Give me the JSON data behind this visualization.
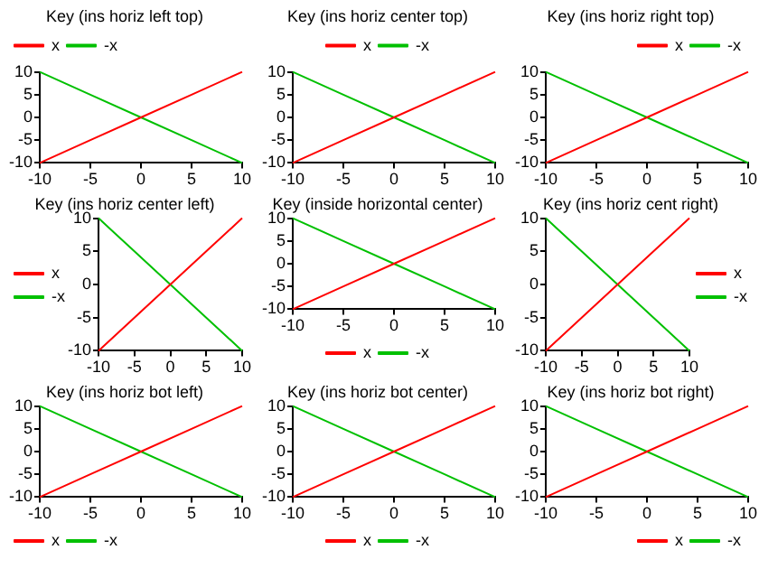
{
  "chart_data": [
    {
      "type": "line",
      "title": "Key (ins horiz left top)",
      "legend": "top left",
      "marker": "none",
      "line_style": "solid",
      "grid": false,
      "xlim": [
        -10,
        10
      ],
      "ylim": [
        -10,
        10
      ],
      "xticks": [
        -10,
        -5,
        0,
        5,
        10
      ],
      "yticks": [
        -10,
        -5,
        0,
        5,
        10
      ],
      "x": [
        -10,
        -5,
        0,
        5,
        10
      ],
      "series": [
        {
          "name": "x",
          "color": "#ff0000",
          "values": [
            -10,
            -5,
            0,
            5,
            10
          ]
        },
        {
          "name": "-x",
          "color": "#00c000",
          "values": [
            10,
            5,
            0,
            -5,
            -10
          ]
        }
      ]
    },
    {
      "type": "line",
      "title": "Key (ins horiz center top)",
      "legend": "top",
      "marker": "none",
      "line_style": "solid",
      "grid": false,
      "xlim": [
        -10,
        10
      ],
      "ylim": [
        -10,
        10
      ],
      "xticks": [
        -10,
        -5,
        0,
        5,
        10
      ],
      "yticks": [
        -10,
        -5,
        0,
        5,
        10
      ],
      "x": [
        -10,
        -5,
        0,
        5,
        10
      ],
      "series": [
        {
          "name": "x",
          "color": "#ff0000",
          "values": [
            -10,
            -5,
            0,
            5,
            10
          ]
        },
        {
          "name": "-x",
          "color": "#00c000",
          "values": [
            10,
            5,
            0,
            -5,
            -10
          ]
        }
      ]
    },
    {
      "type": "line",
      "title": "Key (ins horiz right top)",
      "legend": "top right",
      "marker": "none",
      "line_style": "solid",
      "grid": false,
      "xlim": [
        -10,
        10
      ],
      "ylim": [
        -10,
        10
      ],
      "xticks": [
        -10,
        -5,
        0,
        5,
        10
      ],
      "yticks": [
        -10,
        -5,
        0,
        5,
        10
      ],
      "x": [
        -10,
        -5,
        0,
        5,
        10
      ],
      "series": [
        {
          "name": "x",
          "color": "#ff0000",
          "values": [
            -10,
            -5,
            0,
            5,
            10
          ]
        },
        {
          "name": "-x",
          "color": "#00c000",
          "values": [
            10,
            5,
            0,
            -5,
            -10
          ]
        }
      ]
    },
    {
      "type": "line",
      "title": "Key (ins horiz center left)",
      "legend": "left",
      "marker": "none",
      "line_style": "solid",
      "grid": false,
      "xlim": [
        -10,
        10
      ],
      "ylim": [
        -10,
        10
      ],
      "xticks": [
        -10,
        -5,
        0,
        5,
        10
      ],
      "yticks": [
        -10,
        -5,
        0,
        5,
        10
      ],
      "x": [
        -10,
        -5,
        0,
        5,
        10
      ],
      "series": [
        {
          "name": "x",
          "color": "#ff0000",
          "values": [
            -10,
            -5,
            0,
            5,
            10
          ]
        },
        {
          "name": "-x",
          "color": "#00c000",
          "values": [
            10,
            5,
            0,
            -5,
            -10
          ]
        }
      ]
    },
    {
      "type": "line",
      "title": "Key (inside horizontal center)",
      "legend": "center",
      "marker": "none",
      "line_style": "solid",
      "grid": false,
      "xlim": [
        -10,
        10
      ],
      "ylim": [
        -10,
        10
      ],
      "xticks": [
        -10,
        -5,
        0,
        5,
        10
      ],
      "yticks": [
        -10,
        -5,
        0,
        5,
        10
      ],
      "x": [
        -10,
        -5,
        0,
        5,
        10
      ],
      "series": [
        {
          "name": "x",
          "color": "#ff0000",
          "values": [
            -10,
            -5,
            0,
            5,
            10
          ]
        },
        {
          "name": "-x",
          "color": "#00c000",
          "values": [
            10,
            5,
            0,
            -5,
            -10
          ]
        }
      ]
    },
    {
      "type": "line",
      "title": "Key (ins horiz cent right)",
      "legend": "right",
      "marker": "none",
      "line_style": "solid",
      "grid": false,
      "xlim": [
        -10,
        10
      ],
      "ylim": [
        -10,
        10
      ],
      "xticks": [
        -10,
        -5,
        0,
        5,
        10
      ],
      "yticks": [
        -10,
        -5,
        0,
        5,
        10
      ],
      "x": [
        -10,
        -5,
        0,
        5,
        10
      ],
      "series": [
        {
          "name": "x",
          "color": "#ff0000",
          "values": [
            -10,
            -5,
            0,
            5,
            10
          ]
        },
        {
          "name": "-x",
          "color": "#00c000",
          "values": [
            10,
            5,
            0,
            -5,
            -10
          ]
        }
      ]
    },
    {
      "type": "line",
      "title": "Key (ins horiz bot left)",
      "legend": "bottom left",
      "marker": "none",
      "line_style": "solid",
      "grid": false,
      "xlim": [
        -10,
        10
      ],
      "ylim": [
        -10,
        10
      ],
      "xticks": [
        -10,
        -5,
        0,
        5,
        10
      ],
      "yticks": [
        -10,
        -5,
        0,
        5,
        10
      ],
      "x": [
        -10,
        -5,
        0,
        5,
        10
      ],
      "series": [
        {
          "name": "x",
          "color": "#ff0000",
          "values": [
            -10,
            -5,
            0,
            5,
            10
          ]
        },
        {
          "name": "-x",
          "color": "#00c000",
          "values": [
            10,
            5,
            0,
            -5,
            -10
          ]
        }
      ]
    },
    {
      "type": "line",
      "title": "Key (ins horiz bot center)",
      "legend": "bottom",
      "marker": "none",
      "line_style": "solid",
      "grid": false,
      "xlim": [
        -10,
        10
      ],
      "ylim": [
        -10,
        10
      ],
      "xticks": [
        -10,
        -5,
        0,
        5,
        10
      ],
      "yticks": [
        -10,
        -5,
        0,
        5,
        10
      ],
      "x": [
        -10,
        -5,
        0,
        5,
        10
      ],
      "series": [
        {
          "name": "x",
          "color": "#ff0000",
          "values": [
            -10,
            -5,
            0,
            5,
            10
          ]
        },
        {
          "name": "-x",
          "color": "#00c000",
          "values": [
            10,
            5,
            0,
            -5,
            -10
          ]
        }
      ]
    },
    {
      "type": "line",
      "title": "Key (ins horiz bot right)",
      "legend": "bottom right",
      "marker": "none",
      "line_style": "solid",
      "grid": false,
      "xlim": [
        -10,
        10
      ],
      "ylim": [
        -10,
        10
      ],
      "xticks": [
        -10,
        -5,
        0,
        5,
        10
      ],
      "yticks": [
        -10,
        -5,
        0,
        5,
        10
      ],
      "x": [
        -10,
        -5,
        0,
        5,
        10
      ],
      "series": [
        {
          "name": "x",
          "color": "#ff0000",
          "values": [
            -10,
            -5,
            0,
            5,
            10
          ]
        },
        {
          "name": "-x",
          "color": "#00c000",
          "values": [
            10,
            5,
            0,
            -5,
            -10
          ]
        }
      ]
    }
  ]
}
